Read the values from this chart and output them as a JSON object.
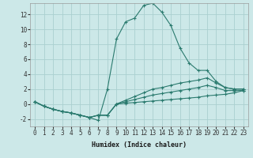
{
  "xlabel": "Humidex (Indice chaleur)",
  "bg_color": "#cce8e8",
  "grid_color": "#aad0d0",
  "line_color": "#2a7a6e",
  "xlim": [
    -0.5,
    23.5
  ],
  "ylim": [
    -3.0,
    13.5
  ],
  "yticks": [
    -2,
    0,
    2,
    4,
    6,
    8,
    10,
    12
  ],
  "xticks": [
    0,
    1,
    2,
    3,
    4,
    5,
    6,
    7,
    8,
    9,
    10,
    11,
    12,
    13,
    14,
    15,
    16,
    17,
    18,
    19,
    20,
    21,
    22,
    23
  ],
  "line1_x": [
    0,
    1,
    2,
    3,
    4,
    5,
    6,
    7,
    8,
    9,
    10,
    11,
    12,
    13,
    14,
    15,
    16,
    17,
    18,
    19,
    20,
    21,
    22,
    23
  ],
  "line1_y": [
    0.3,
    -0.3,
    -0.7,
    -1.0,
    -1.2,
    -1.5,
    -1.8,
    -2.2,
    2.0,
    8.7,
    11.0,
    11.5,
    13.2,
    13.5,
    12.3,
    10.5,
    7.5,
    5.5,
    4.5,
    4.5,
    3.0,
    2.2,
    2.0,
    2.0
  ],
  "line2_x": [
    0,
    1,
    2,
    3,
    4,
    5,
    6,
    7,
    8,
    9,
    10,
    11,
    12,
    13,
    14,
    15,
    16,
    17,
    18,
    19,
    20,
    21,
    22,
    23
  ],
  "line2_y": [
    0.3,
    -0.3,
    -0.7,
    -1.0,
    -1.2,
    -1.5,
    -1.8,
    -1.5,
    -1.5,
    0.0,
    0.5,
    1.0,
    1.5,
    2.0,
    2.2,
    2.5,
    2.8,
    3.0,
    3.2,
    3.5,
    2.8,
    2.2,
    2.0,
    2.0
  ],
  "line3_x": [
    0,
    1,
    2,
    3,
    4,
    5,
    6,
    7,
    8,
    9,
    10,
    11,
    12,
    13,
    14,
    15,
    16,
    17,
    18,
    19,
    20,
    21,
    22,
    23
  ],
  "line3_y": [
    0.3,
    -0.3,
    -0.7,
    -1.0,
    -1.2,
    -1.5,
    -1.8,
    -1.5,
    -1.5,
    0.0,
    0.3,
    0.6,
    0.9,
    1.2,
    1.4,
    1.6,
    1.8,
    2.0,
    2.2,
    2.5,
    2.2,
    1.8,
    1.8,
    1.8
  ],
  "line4_x": [
    0,
    1,
    2,
    3,
    4,
    5,
    6,
    7,
    8,
    9,
    10,
    11,
    12,
    13,
    14,
    15,
    16,
    17,
    18,
    19,
    20,
    21,
    22,
    23
  ],
  "line4_y": [
    0.3,
    -0.3,
    -0.7,
    -1.0,
    -1.2,
    -1.5,
    -1.8,
    -1.5,
    -1.5,
    0.0,
    0.1,
    0.2,
    0.3,
    0.4,
    0.5,
    0.6,
    0.7,
    0.8,
    0.9,
    1.1,
    1.2,
    1.3,
    1.5,
    1.8
  ],
  "tick_fontsize": 5.5,
  "xlabel_fontsize": 6.0
}
